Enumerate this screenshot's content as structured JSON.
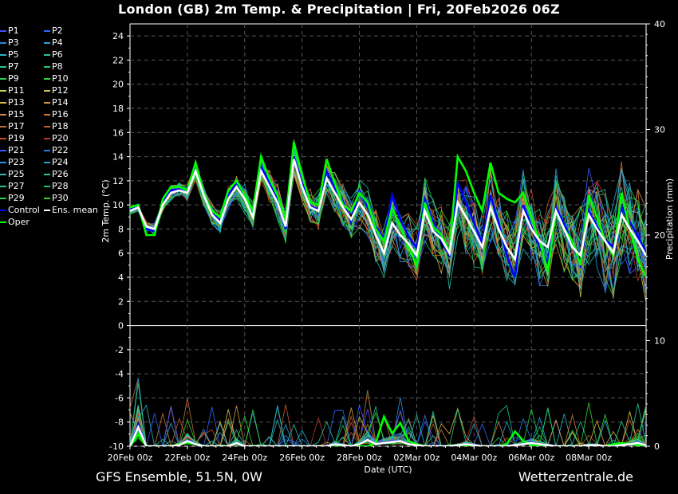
{
  "title": "London  (GB)  2m Temp. & Precipitation | Fri, 20Feb2026 06Z",
  "footer": {
    "left": "GFS Ensemble, 51.5N, 0W",
    "right": "Wetterzentrale.de"
  },
  "chart_data": {
    "type": "line",
    "xlabel": "Date (UTC)",
    "ylabel_left": "2m Temp. (°C)",
    "ylabel_right": "Precipitation (mm)",
    "x_ticks": [
      "20Feb 00z",
      "22Feb 00z",
      "24Feb 00z",
      "26Feb 00z",
      "28Feb 00z",
      "02Mar 00z",
      "04Mar 00z",
      "06Mar 00z",
      "08Mar 00z"
    ],
    "x_range_hours": [
      0,
      432
    ],
    "temp_ticks": [
      "24",
      "22",
      "20",
      "18",
      "16",
      "14",
      "12",
      "10",
      "8",
      "6",
      "4",
      "2",
      "0",
      "-2",
      "-4",
      "-6",
      "-8",
      "-10"
    ],
    "temp_range": [
      -10,
      25
    ],
    "precip_ticks": [
      "40",
      "30",
      "20",
      "10",
      "0"
    ],
    "precip_range": [
      0,
      40
    ],
    "grid": true,
    "legend": [
      {
        "name": "P1",
        "color": "#4b4bff"
      },
      {
        "name": "P2",
        "color": "#2a6cff"
      },
      {
        "name": "P3",
        "color": "#2f86e8"
      },
      {
        "name": "P4",
        "color": "#2aa0d8"
      },
      {
        "name": "P5",
        "color": "#27b4c4"
      },
      {
        "name": "P6",
        "color": "#25c4a6"
      },
      {
        "name": "P7",
        "color": "#22c88a"
      },
      {
        "name": "P8",
        "color": "#1fca66"
      },
      {
        "name": "P9",
        "color": "#26d04c"
      },
      {
        "name": "P10",
        "color": "#30d630"
      },
      {
        "name": "P11",
        "color": "#c8d048"
      },
      {
        "name": "P12",
        "color": "#d8c24a"
      },
      {
        "name": "P13",
        "color": "#d8b04a"
      },
      {
        "name": "P14",
        "color": "#d49a40"
      },
      {
        "name": "P15",
        "color": "#cf8a3c"
      },
      {
        "name": "P16",
        "color": "#c97838"
      },
      {
        "name": "P17",
        "color": "#c66a34"
      },
      {
        "name": "P18",
        "color": "#c25a30"
      },
      {
        "name": "P19",
        "color": "#be4a2c"
      },
      {
        "name": "P20",
        "color": "#b83a28"
      },
      {
        "name": "P21",
        "color": "#3a5aff"
      },
      {
        "name": "P22",
        "color": "#2e78f0"
      },
      {
        "name": "P23",
        "color": "#2a92e0"
      },
      {
        "name": "P24",
        "color": "#26a8d0"
      },
      {
        "name": "P25",
        "color": "#24b8b8"
      },
      {
        "name": "P26",
        "color": "#22c49c"
      },
      {
        "name": "P27",
        "color": "#20c880"
      },
      {
        "name": "P28",
        "color": "#1cc666"
      },
      {
        "name": "P29",
        "color": "#22cc48"
      },
      {
        "name": "P30",
        "color": "#2ad428"
      },
      {
        "name": "Control",
        "color": "#0000ff"
      },
      {
        "name": "Ens. mean",
        "color": "#ffffff"
      },
      {
        "name": "Oper",
        "color": "#00ff00"
      }
    ],
    "ens_mean_temp": [
      9.5,
      9.8,
      8.2,
      8.0,
      10.0,
      11.0,
      11.2,
      11.0,
      12.8,
      10.8,
      9.2,
      8.5,
      10.5,
      11.5,
      10.5,
      9.0,
      12.8,
      11.5,
      10.2,
      8.2,
      13.8,
      11.5,
      9.8,
      9.5,
      12.2,
      11.0,
      9.8,
      8.8,
      10.2,
      9.2,
      7.5,
      6.0,
      8.5,
      7.5,
      6.8,
      5.8,
      9.5,
      7.8,
      7.2,
      6.0,
      10.2,
      9.0,
      7.8,
      6.5,
      9.8,
      8.0,
      6.5,
      5.5,
      9.5,
      8.0,
      7.0,
      6.5,
      9.5,
      8.0,
      6.5,
      5.8,
      9.2,
      8.0,
      7.0,
      6.0,
      9.2,
      8.0,
      7.0,
      5.8
    ],
    "oper_temp": [
      9.8,
      10.0,
      7.5,
      7.5,
      10.5,
      11.5,
      11.5,
      11.2,
      13.5,
      11.0,
      9.5,
      9.0,
      11.2,
      12.0,
      10.8,
      9.5,
      14.0,
      12.2,
      10.8,
      8.8,
      15.2,
      12.5,
      10.2,
      10.0,
      13.8,
      11.8,
      10.0,
      9.5,
      11.0,
      10.2,
      8.0,
      7.0,
      9.8,
      8.2,
      6.5,
      5.0,
      10.2,
      8.2,
      7.5,
      6.2,
      14.0,
      12.8,
      11.0,
      9.5,
      13.5,
      11.0,
      10.5,
      10.2,
      11.0,
      9.0,
      7.0,
      4.5,
      9.5,
      8.0,
      7.0,
      5.0,
      10.8,
      9.0,
      7.0,
      5.8,
      11.0,
      8.0,
      5.5,
      4.0
    ],
    "control_temp": [
      9.6,
      9.9,
      8.0,
      7.8,
      10.2,
      11.2,
      11.3,
      11.0,
      13.0,
      10.9,
      9.3,
      8.7,
      10.8,
      11.8,
      10.6,
      9.2,
      13.2,
      11.8,
      10.4,
      8.0,
      14.0,
      11.8,
      9.9,
      9.6,
      12.8,
      11.4,
      10.3,
      8.6,
      11.2,
      9.8,
      8.2,
      7.2,
      10.8,
      8.8,
      7.4,
      6.4,
      10.5,
      8.6,
      7.0,
      5.8,
      11.8,
      10.2,
      8.5,
      6.8,
      10.8,
      8.5,
      5.8,
      4.0,
      10.0,
      8.2,
      6.5,
      5.2,
      9.8,
      8.4,
      6.8,
      5.0,
      9.5,
      8.2,
      7.1,
      6.5,
      9.8,
      8.6,
      7.4,
      6.0
    ],
    "ens_mean_precip": [
      0,
      1.8,
      0,
      0,
      0,
      0,
      0.1,
      0.5,
      0.2,
      0,
      0,
      0,
      0,
      0.3,
      0,
      0,
      0,
      0,
      0,
      0,
      0,
      0,
      0,
      0,
      0,
      0.2,
      0.1,
      0,
      0.2,
      0.6,
      0.2,
      0.3,
      0.4,
      0.5,
      0.2,
      0.1,
      0,
      0,
      0,
      0,
      0.1,
      0.2,
      0.1,
      0,
      0,
      0,
      0,
      0.1,
      0.2,
      0.3,
      0.2,
      0.1,
      0,
      0,
      0,
      0,
      0.1,
      0.1,
      0,
      0,
      0.1,
      0.2,
      0.3,
      0.1
    ],
    "oper_precip": [
      0,
      1.1,
      0,
      0,
      0,
      0,
      0.2,
      0.3,
      0.2,
      0,
      0,
      0,
      0,
      0.3,
      0,
      0,
      0,
      0,
      0,
      0,
      0,
      0,
      0,
      0,
      0,
      0,
      0,
      0,
      0,
      0,
      0.3,
      2.8,
      1.2,
      2.2,
      0.5,
      0.2,
      0,
      0,
      0,
      0,
      0.1,
      0,
      0,
      0,
      0,
      0,
      0.2,
      1.4,
      0.5,
      0.1,
      0,
      0,
      0,
      0,
      0,
      0,
      0,
      0,
      0,
      0.2,
      0.3,
      0.2,
      0.1,
      0
    ]
  }
}
